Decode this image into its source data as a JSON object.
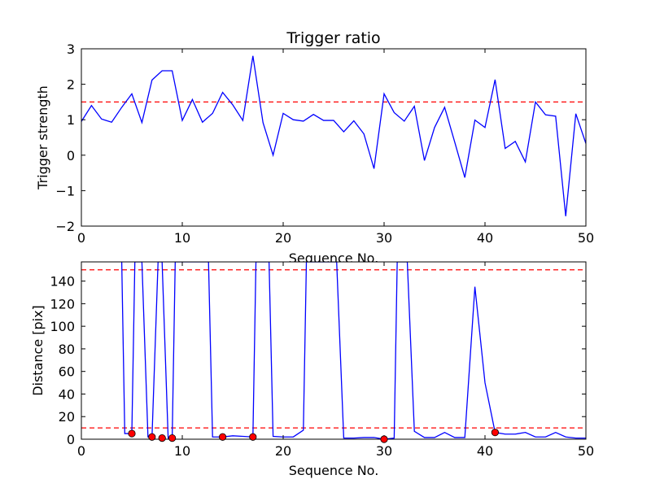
{
  "chart_data": [
    {
      "type": "line",
      "title": "Trigger ratio",
      "xlabel": "Sequence No.",
      "ylabel": "Trigger strength",
      "xlim": [
        0,
        50
      ],
      "ylim": [
        -2,
        3
      ],
      "xticks": [
        0,
        10,
        20,
        30,
        40,
        50
      ],
      "yticks": [
        -2,
        -1,
        0,
        1,
        2,
        3
      ],
      "xtick_labels": [
        "0",
        "10",
        "20",
        "30",
        "40",
        "50"
      ],
      "ytick_labels": [
        "−2",
        "−1",
        "0",
        "1",
        "2",
        "3"
      ],
      "grid": false,
      "series": [
        {
          "color": "#0000ff",
          "x": [
            0,
            1,
            2,
            3,
            4,
            5,
            6,
            7,
            8,
            9,
            10,
            11,
            12,
            13,
            14,
            15,
            16,
            17,
            18,
            19,
            20,
            21,
            22,
            23,
            24,
            25,
            26,
            27,
            28,
            29,
            30,
            31,
            32,
            33,
            34,
            35,
            36,
            37,
            38,
            39,
            40,
            41,
            42,
            43,
            44,
            45,
            46,
            47,
            48,
            49,
            50
          ],
          "values": [
            0.95,
            1.4,
            1.02,
            0.93,
            1.35,
            1.73,
            0.92,
            2.12,
            2.38,
            2.38,
            0.98,
            1.57,
            0.93,
            1.18,
            1.77,
            1.42,
            0.98,
            2.8,
            0.92,
            0.0,
            1.18,
            1.0,
            0.96,
            1.15,
            0.98,
            0.98,
            0.66,
            0.97,
            0.6,
            -0.38,
            1.73,
            1.2,
            0.96,
            1.38,
            -0.15,
            0.78,
            1.35,
            0.37,
            -0.63,
            0.99,
            0.78,
            2.13,
            0.19,
            0.39,
            -0.19,
            1.5,
            1.14,
            1.1,
            -1.72,
            1.17,
            0.33
          ]
        }
      ],
      "reference_lines": [
        {
          "y": 1.5,
          "color": "#ff0000",
          "style": "dashed"
        }
      ]
    },
    {
      "type": "line",
      "xlabel": "Sequence No.",
      "ylabel": "Distance [pix]",
      "xlim": [
        0,
        50
      ],
      "ylim": [
        0,
        157
      ],
      "xticks": [
        0,
        10,
        20,
        30,
        40,
        50
      ],
      "yticks": [
        0,
        20,
        40,
        60,
        80,
        100,
        120,
        140
      ],
      "xtick_labels": [
        "0",
        "10",
        "20",
        "30",
        "40",
        "50"
      ],
      "ytick_labels": [
        "0",
        "20",
        "40",
        "60",
        "80",
        "100",
        "120",
        "140"
      ],
      "grid": false,
      "series": [
        {
          "color": "#0000ff",
          "x": [
            4,
            4.3,
            5,
            5.3,
            6,
            6.6,
            7,
            7.6,
            8,
            8.6,
            9,
            9.3,
            10,
            10.6,
            11,
            12,
            12.6,
            13,
            14,
            15,
            16,
            17,
            17.3,
            18,
            18.6,
            19,
            20,
            21,
            22,
            22.3,
            23,
            24,
            25,
            25.3,
            26,
            27,
            28,
            29,
            30,
            31,
            31.3,
            32,
            32.3,
            33,
            34,
            35,
            36,
            37,
            38,
            39,
            40,
            41,
            42,
            43,
            44,
            45,
            46,
            47,
            48,
            49,
            50
          ],
          "values": [
            157,
            5,
            5,
            157,
            157,
            2,
            2,
            157,
            157,
            1,
            1,
            157,
            157,
            157,
            157,
            157,
            157,
            2,
            2,
            3,
            2.5,
            2,
            157,
            157,
            157,
            2.5,
            2,
            2,
            8,
            157,
            157,
            157,
            157,
            157,
            1,
            1,
            1.5,
            1.5,
            0,
            1,
            157,
            157,
            157,
            7,
            1.5,
            1.5,
            6,
            1.5,
            1.5,
            135,
            50,
            6,
            4.5,
            4.5,
            6,
            2,
            2,
            6,
            2,
            1,
            1
          ]
        }
      ],
      "markers": {
        "color": "#ff0000",
        "x": [
          5,
          7,
          8,
          9,
          14,
          17,
          30,
          41
        ],
        "values": [
          5,
          2,
          1,
          1,
          2,
          2,
          0,
          6
        ]
      },
      "reference_lines": [
        {
          "y": 150,
          "color": "#ff0000",
          "style": "dashed"
        },
        {
          "y": 10,
          "color": "#ff0000",
          "style": "dashed"
        }
      ]
    }
  ]
}
